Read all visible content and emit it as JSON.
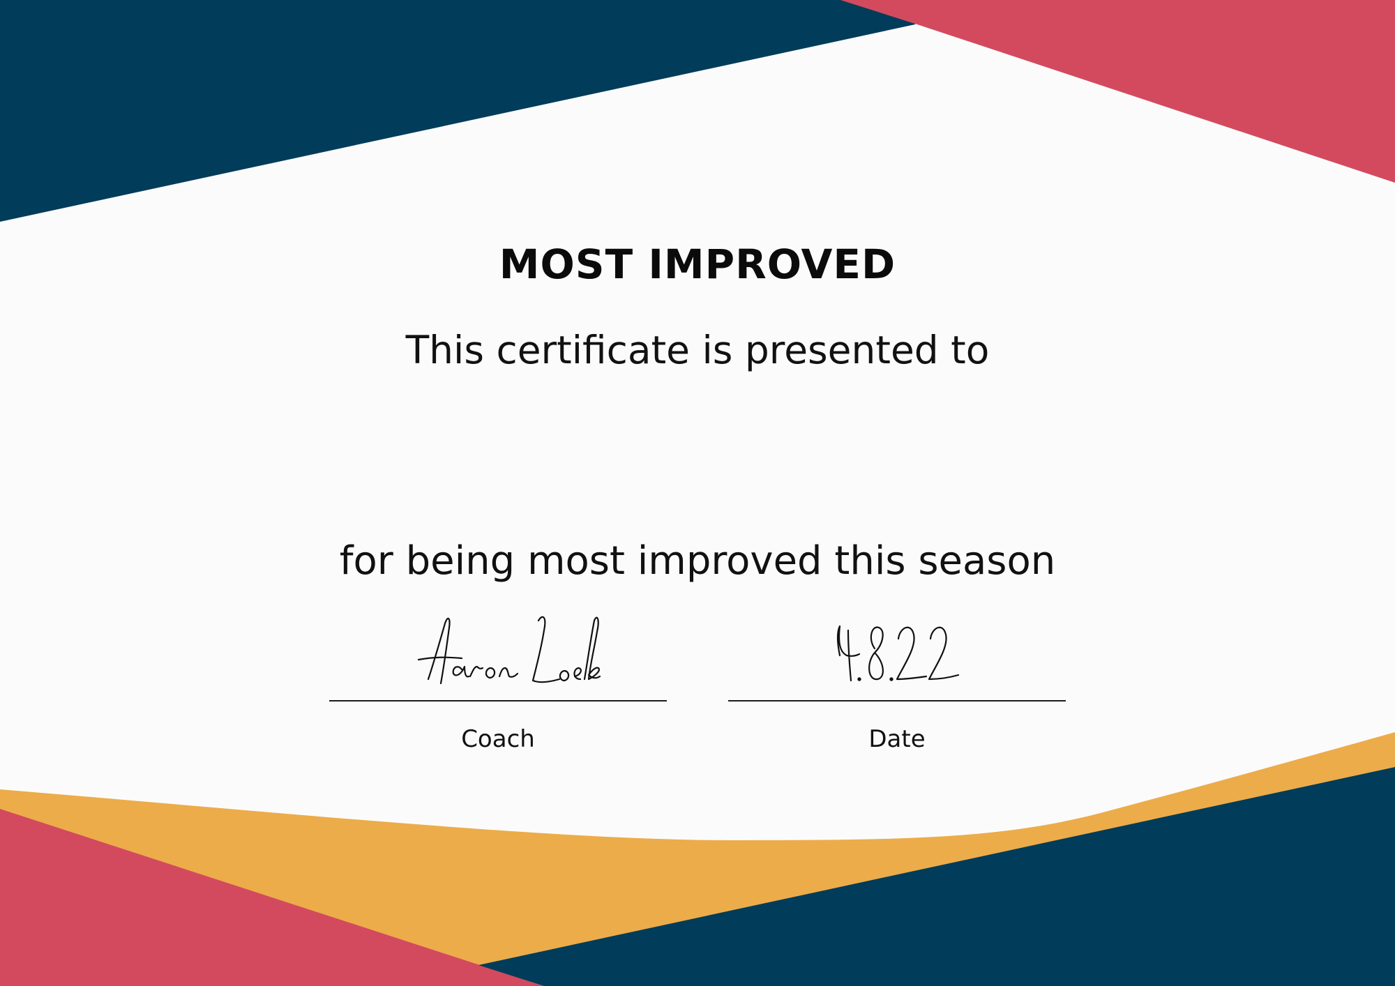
{
  "certificate": {
    "title": "MOST IMPROVED",
    "presented_line": "This certificate is presented to",
    "recipient_name": "",
    "reason_line": "for being most improved this season",
    "signatures": {
      "coach": {
        "signature_text": "Aaron Loeb",
        "label": "Coach"
      },
      "date": {
        "signature_text": "4.8.22",
        "label": "Date"
      }
    }
  },
  "colors": {
    "background": "#fbfbfb",
    "navy": "#013c5a",
    "coral": "#d34a5e",
    "mustard": "#ecac4a",
    "text": "#0b0b0b"
  }
}
